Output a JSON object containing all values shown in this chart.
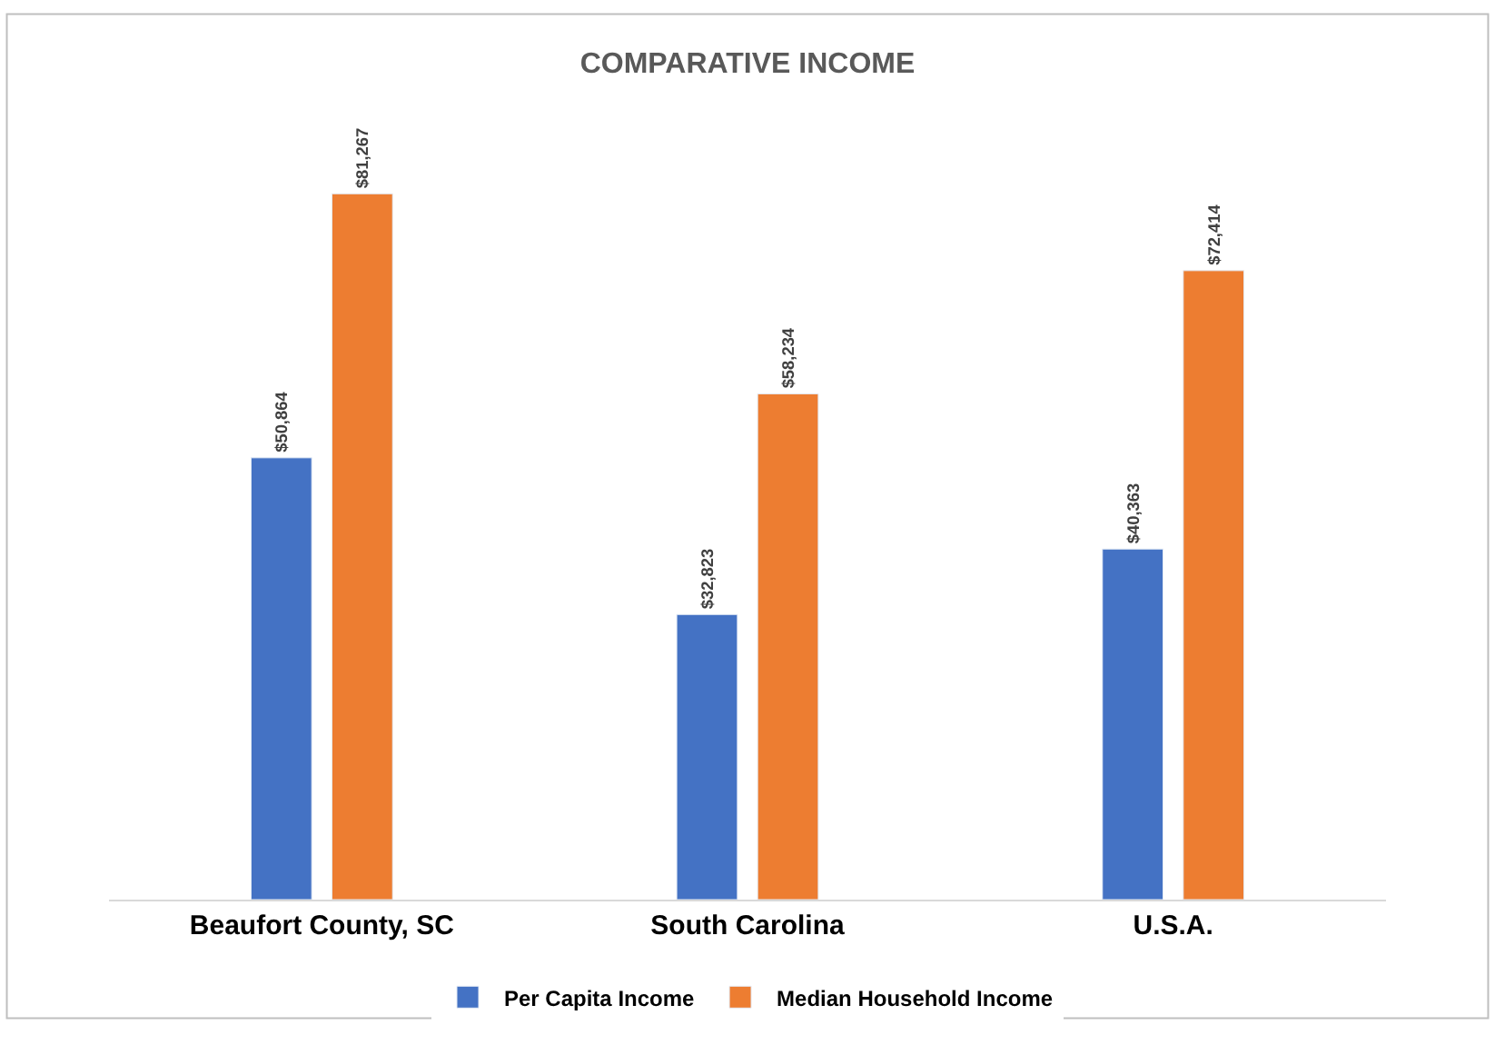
{
  "chart_data": {
    "type": "bar",
    "title": "COMPARATIVE INCOME",
    "categories": [
      "Beaufort County, SC",
      "South Carolina",
      "U.S.A."
    ],
    "series": [
      {
        "name": "Per Capita Income",
        "color": "#4472c4",
        "values": [
          50864,
          32823,
          40363
        ],
        "value_labels": [
          "$50,864",
          "$32,823",
          "$40,363"
        ]
      },
      {
        "name": "Median Household Income",
        "color": "#ed7d31",
        "values": [
          81267,
          58234,
          72414
        ],
        "value_labels": [
          "$81,267",
          "$58,234",
          "$72,414"
        ]
      }
    ],
    "legend": "bottom"
  }
}
